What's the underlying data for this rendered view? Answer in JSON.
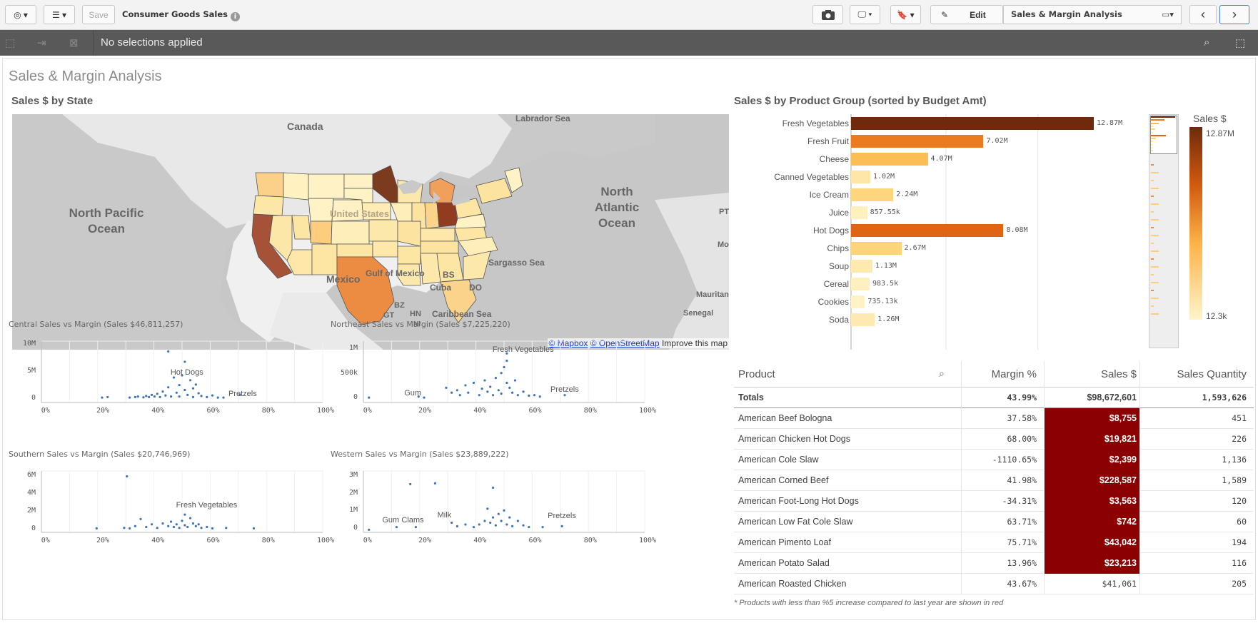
{
  "toolbar": {
    "save_label": "Save",
    "app_title": "Consumer Goods Sales",
    "edit_label": "Edit",
    "sheet_name": "Sales & Margin Analysis"
  },
  "selections": {
    "text": "No selections applied"
  },
  "sheet": {
    "title": "Sales & Margin Analysis"
  },
  "map": {
    "title": "Sales $ by State",
    "labels": {
      "canada": "Canada",
      "labrador": "Labrador Sea",
      "npo": "North Pacific Ocean",
      "nao": "North Atlantic Ocean",
      "us": "United States",
      "mexico": "Mexico",
      "gulf": "Gulf of Mexico",
      "sargasso": "Sargasso Sea",
      "bs": "BS",
      "cuba": "Cuba",
      "do": "DO",
      "bz": "BZ",
      "hn": "HN",
      "gt": "GT",
      "ni": "NI",
      "caribbean": "Caribbean Sea",
      "senegal": "Senegal",
      "mauritan": "Mauritan",
      "pt": "PT",
      "mo": "Mo"
    },
    "attribution": {
      "mapbox": "© Mapbox",
      "osm": "© OpenStreetMap",
      "improve": "Improve this map"
    }
  },
  "bar_chart": {
    "title": "Sales $ by Product Group (sorted by Budget Amt)",
    "legend_title": "Sales $",
    "legend_max": "12.87M",
    "legend_min": "12.3k"
  },
  "chart_data": [
    {
      "type": "bar",
      "orientation": "horizontal",
      "title": "Sales $ by Product Group (sorted by Budget Amt)",
      "categories": [
        "Fresh Vegetables",
        "Fresh Fruit",
        "Cheese",
        "Canned Vegetables",
        "Ice Cream",
        "Juice",
        "Hot Dogs",
        "Chips",
        "Soup",
        "Cereal",
        "Cookies",
        "Soda"
      ],
      "values": [
        12870000,
        7020000,
        4070000,
        1020000,
        2240000,
        857550,
        8080000,
        2670000,
        1130000,
        983500,
        735130,
        1260000
      ],
      "value_labels": [
        "12.87M",
        "7.02M",
        "4.07M",
        "1.02M",
        "2.24M",
        "857.55k",
        "8.08M",
        "2.67M",
        "1.13M",
        "983.5k",
        "735.13k",
        "1.26M"
      ],
      "colors": [
        "#6e2a0b",
        "#ec7a1e",
        "#fbbe55",
        "#fee6a8",
        "#fdd67d",
        "#fff0bf",
        "#df6413",
        "#fdd47a",
        "#feeaae",
        "#fff0c0",
        "#fff2c6",
        "#feeab0"
      ]
    },
    {
      "type": "scatter",
      "title": "Central Sales vs Margin (Sales $46,811,257)",
      "xlim": [
        -0.02,
        1.0
      ],
      "ylim": [
        -800000,
        10500000
      ],
      "xticks": [
        "0%",
        "20%",
        "40%",
        "60%",
        "80%",
        "100%"
      ],
      "yticks": [
        "10M",
        "5M",
        "0"
      ],
      "annotations": [
        {
          "text": "Hot Dogs",
          "x": 0.5,
          "y": 4500000
        },
        {
          "text": "Pretzels",
          "x": 0.71,
          "y": 500000
        }
      ],
      "points": [
        [
          0.2,
          0.1
        ],
        [
          0.22,
          0.2
        ],
        [
          0.3,
          0.1
        ],
        [
          0.32,
          0.2
        ],
        [
          0.33,
          0.3
        ],
        [
          0.35,
          0.15
        ],
        [
          0.36,
          0.4
        ],
        [
          0.37,
          0.2
        ],
        [
          0.38,
          0.6
        ],
        [
          0.39,
          0.3
        ],
        [
          0.4,
          0.8
        ],
        [
          0.41,
          0.2
        ],
        [
          0.42,
          1.2
        ],
        [
          0.43,
          0.5
        ],
        [
          0.44,
          8.6
        ],
        [
          0.44,
          2.0
        ],
        [
          0.45,
          0.3
        ],
        [
          0.46,
          3.8
        ],
        [
          0.47,
          1.0
        ],
        [
          0.48,
          2.4
        ],
        [
          0.48,
          0.3
        ],
        [
          0.49,
          4.2
        ],
        [
          0.5,
          6.7
        ],
        [
          0.5,
          1.5
        ],
        [
          0.51,
          0.6
        ],
        [
          0.52,
          3.3
        ],
        [
          0.53,
          1.8
        ],
        [
          0.53,
          0.2
        ],
        [
          0.54,
          2.5
        ],
        [
          0.55,
          0.9
        ],
        [
          0.56,
          0.4
        ],
        [
          0.58,
          0.2
        ],
        [
          0.6,
          0.5
        ],
        [
          0.62,
          0.1
        ],
        [
          0.64,
          0.1
        ],
        [
          0.7,
          0.6
        ]
      ]
    },
    {
      "type": "scatter",
      "title": "Northeast Sales vs Margin (Sales $7,225,220)",
      "xlim": [
        -0.02,
        1.0
      ],
      "ylim": [
        -100000,
        1150000
      ],
      "xticks": [
        "0%",
        "20%",
        "40%",
        "60%",
        "80%",
        "100%"
      ],
      "yticks": [
        "1M",
        "500k",
        "0"
      ],
      "annotations": [
        {
          "text": "Fresh Vegetables",
          "x": 0.5,
          "y": 950000
        },
        {
          "text": "Pretzels",
          "x": 0.71,
          "y": 130000
        },
        {
          "text": "Gum",
          "x": 0.18,
          "y": 60000
        }
      ],
      "points": [
        [
          0.0,
          0.0
        ],
        [
          0.18,
          0.02
        ],
        [
          0.2,
          0.0
        ],
        [
          0.28,
          0.2
        ],
        [
          0.3,
          0.1
        ],
        [
          0.32,
          0.15
        ],
        [
          0.33,
          0.05
        ],
        [
          0.35,
          0.25
        ],
        [
          0.36,
          0.1
        ],
        [
          0.38,
          0.3
        ],
        [
          0.4,
          0.05
        ],
        [
          0.41,
          0.18
        ],
        [
          0.42,
          0.35
        ],
        [
          0.43,
          0.12
        ],
        [
          0.44,
          0.22
        ],
        [
          0.45,
          0.05
        ],
        [
          0.46,
          0.4
        ],
        [
          0.47,
          0.15
        ],
        [
          0.48,
          0.5
        ],
        [
          0.48,
          0.08
        ],
        [
          0.49,
          0.62
        ],
        [
          0.5,
          0.75
        ],
        [
          0.5,
          0.3
        ],
        [
          0.5,
          0.9
        ],
        [
          0.51,
          0.2
        ],
        [
          0.52,
          0.1
        ],
        [
          0.53,
          0.35
        ],
        [
          0.54,
          0.05
        ],
        [
          0.56,
          0.12
        ],
        [
          0.58,
          0.04
        ],
        [
          0.6,
          0.05
        ],
        [
          0.62,
          0.02
        ],
        [
          0.71,
          0.05
        ]
      ]
    },
    {
      "type": "scatter",
      "title": "Southern Sales vs Margin (Sales $20,746,969)",
      "xlim": [
        -0.02,
        1.0
      ],
      "ylim": [
        -400000,
        6500000
      ],
      "xticks": [
        "0%",
        "20%",
        "40%",
        "60%",
        "80%",
        "100%"
      ],
      "yticks": [
        "6M",
        "4M",
        "2M",
        "0"
      ],
      "annotations": [
        {
          "text": "Fresh Vegetables",
          "x": 0.52,
          "y": 2500000
        }
      ],
      "points": [
        [
          0.18,
          0.05
        ],
        [
          0.28,
          0.1
        ],
        [
          0.29,
          5.9
        ],
        [
          0.3,
          0.05
        ],
        [
          0.32,
          0.3
        ],
        [
          0.34,
          1.1
        ],
        [
          0.36,
          0.2
        ],
        [
          0.38,
          0.5
        ],
        [
          0.4,
          0.1
        ],
        [
          0.42,
          0.6
        ],
        [
          0.44,
          0.3
        ],
        [
          0.45,
          0.8
        ],
        [
          0.46,
          0.2
        ],
        [
          0.47,
          0.5
        ],
        [
          0.48,
          0.1
        ],
        [
          0.49,
          0.9
        ],
        [
          0.5,
          0.4
        ],
        [
          0.5,
          1.6
        ],
        [
          0.51,
          0.2
        ],
        [
          0.52,
          1.2
        ],
        [
          0.53,
          0.6
        ],
        [
          0.54,
          0.3
        ],
        [
          0.55,
          0.5
        ],
        [
          0.56,
          0.1
        ],
        [
          0.58,
          0.2
        ],
        [
          0.6,
          0.05
        ],
        [
          0.65,
          0.1
        ],
        [
          0.75,
          0.05
        ]
      ]
    },
    {
      "type": "scatter",
      "title": "Western Sales vs Margin (Sales $23,889,222)",
      "xlim": [
        -0.02,
        1.0
      ],
      "ylim": [
        -250000,
        3250000
      ],
      "xticks": [
        "0%",
        "20%",
        "40%",
        "60%",
        "80%",
        "100%"
      ],
      "yticks": [
        "3M",
        "2M",
        "1M",
        "0"
      ],
      "annotations": [
        {
          "text": "Gum",
          "x": 0.1,
          "y": 350000
        },
        {
          "text": "Clams",
          "x": 0.17,
          "y": 350000
        },
        {
          "text": "Milk",
          "x": 0.3,
          "y": 650000
        },
        {
          "text": "Pretzels",
          "x": 0.7,
          "y": 600000
        }
      ],
      "points": [
        [
          0.0,
          -0.1
        ],
        [
          0.1,
          0.05
        ],
        [
          0.15,
          2.5
        ],
        [
          0.17,
          0.05
        ],
        [
          0.24,
          2.55
        ],
        [
          0.3,
          0.3
        ],
        [
          0.32,
          0.1
        ],
        [
          0.35,
          0.2
        ],
        [
          0.38,
          0.05
        ],
        [
          0.4,
          0.2
        ],
        [
          0.42,
          0.4
        ],
        [
          0.43,
          1.1
        ],
        [
          0.44,
          0.3
        ],
        [
          0.45,
          2.3
        ],
        [
          0.45,
          0.6
        ],
        [
          0.46,
          0.15
        ],
        [
          0.47,
          0.8
        ],
        [
          0.48,
          0.4
        ],
        [
          0.49,
          1.0
        ],
        [
          0.5,
          0.2
        ],
        [
          0.51,
          0.6
        ],
        [
          0.52,
          0.1
        ],
        [
          0.54,
          0.4
        ],
        [
          0.56,
          0.15
        ],
        [
          0.58,
          0.05
        ],
        [
          0.63,
          0.05
        ],
        [
          0.7,
          0.1
        ]
      ]
    }
  ],
  "table": {
    "headers": {
      "product": "Product",
      "margin": "Margin %",
      "sales": "Sales $",
      "qty": "Sales Quantity"
    },
    "totals": {
      "label": "Totals",
      "margin": "43.99%",
      "sales": "$98,672,601",
      "qty": "1,593,626"
    },
    "rows": [
      {
        "product": "American Beef Bologna",
        "margin": "37.58%",
        "sales": "$8,755",
        "qty": "451",
        "red": true
      },
      {
        "product": "American Chicken Hot Dogs",
        "margin": "68.00%",
        "sales": "$19,821",
        "qty": "226",
        "red": true
      },
      {
        "product": "American Cole Slaw",
        "margin": "-1110.65%",
        "sales": "$2,399",
        "qty": "1,136",
        "red": true
      },
      {
        "product": "American Corned Beef",
        "margin": "41.98%",
        "sales": "$228,587",
        "qty": "1,589",
        "red": true
      },
      {
        "product": "American Foot-Long Hot Dogs",
        "margin": "-34.31%",
        "sales": "$3,563",
        "qty": "120",
        "red": true
      },
      {
        "product": "American Low Fat Cole Slaw",
        "margin": "63.71%",
        "sales": "$742",
        "qty": "60",
        "red": true
      },
      {
        "product": "American Pimento Loaf",
        "margin": "75.71%",
        "sales": "$43,042",
        "qty": "194",
        "red": true
      },
      {
        "product": "American Potato Salad",
        "margin": "13.96%",
        "sales": "$23,213",
        "qty": "116",
        "red": true
      },
      {
        "product": "American Roasted Chicken",
        "margin": "43.67%",
        "sales": "$41,061",
        "qty": "205",
        "red": false
      }
    ],
    "footnote": "* Products with less than %5 increase compared to last year are shown in red"
  }
}
